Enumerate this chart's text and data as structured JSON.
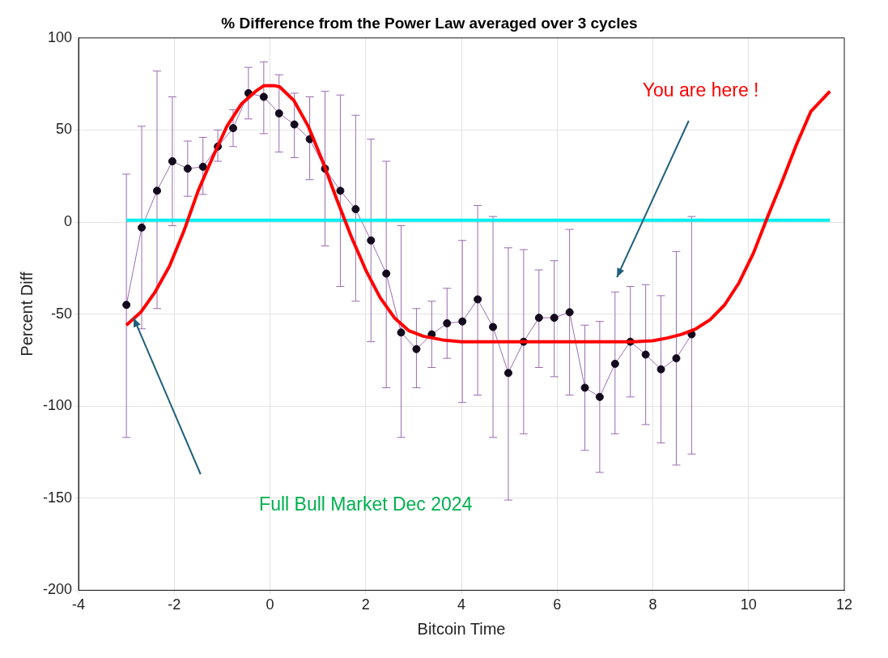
{
  "chart_data": {
    "type": "line",
    "title": "% Difference from the Power Law averaged over 3 cycles",
    "xlabel": "Bitcoin Time",
    "ylabel": "Percent Diff",
    "xlim": [
      -4,
      12
    ],
    "xticks": [
      -4,
      -2,
      0,
      2,
      4,
      6,
      8,
      10,
      12
    ],
    "ylim": [
      -200,
      100
    ],
    "yticks": [
      -200,
      -150,
      -100,
      -50,
      0,
      50,
      100
    ],
    "grid": true,
    "legend": false,
    "series": [
      {
        "type": "line",
        "color": "#9b6bb0",
        "marker": "circle",
        "x": [
          -3.0,
          -2.68,
          -2.36,
          -2.04,
          -1.72,
          -1.4,
          -1.09,
          -0.77,
          -0.45,
          -0.13,
          0.19,
          0.51,
          0.83,
          1.15,
          1.47,
          1.79,
          2.11,
          2.43,
          2.74,
          3.06,
          3.38,
          3.7,
          4.02,
          4.34,
          4.66,
          4.98,
          5.3,
          5.62,
          5.94,
          6.26,
          6.58,
          6.89,
          7.21,
          7.53,
          7.85,
          8.17,
          8.49,
          8.81
        ],
        "values": [
          -45,
          -3,
          17,
          33,
          29,
          30,
          41,
          51,
          70,
          68,
          59,
          53,
          45,
          29,
          17,
          7,
          -10,
          -28,
          -60,
          -69,
          -61,
          -55,
          -54,
          -42,
          -57,
          -82,
          -65,
          -52,
          -52,
          -49,
          -90,
          -95,
          -77,
          -65,
          -72,
          -80,
          -74,
          -61
        ],
        "errors": [
          [
            -117,
            26
          ],
          [
            -58,
            52
          ],
          [
            -47,
            82
          ],
          [
            -2,
            68
          ],
          [
            14,
            44
          ],
          [
            15,
            46
          ],
          [
            33,
            50
          ],
          [
            41,
            61
          ],
          [
            56,
            84
          ],
          [
            48,
            87
          ],
          [
            38,
            80
          ],
          [
            35,
            70
          ],
          [
            23,
            68
          ],
          [
            -13,
            71
          ],
          [
            -35,
            69
          ],
          [
            -43,
            58
          ],
          [
            -65,
            45
          ],
          [
            -90,
            33
          ],
          [
            -117,
            -2
          ],
          [
            -90,
            -47
          ],
          [
            -79,
            -43
          ],
          [
            -74,
            -36
          ],
          [
            -98,
            -10
          ],
          [
            -94,
            9
          ],
          [
            -117,
            3
          ],
          [
            -151,
            -14
          ],
          [
            -115,
            -15
          ],
          [
            -79,
            -26
          ],
          [
            -84,
            -21
          ],
          [
            -94,
            -4
          ],
          [
            -124,
            -56
          ],
          [
            -136,
            -54
          ],
          [
            -115,
            -38
          ],
          [
            -95,
            -35
          ],
          [
            -110,
            -34
          ],
          [
            -120,
            -40
          ],
          [
            -132,
            -16
          ],
          [
            -126,
            3
          ]
        ]
      },
      {
        "type": "line",
        "color": "#ff0000",
        "marker": "none",
        "x": [
          -3,
          -2.7,
          -2.4,
          -2.1,
          -1.8,
          -1.5,
          -1.2,
          -0.9,
          -0.6,
          -0.3,
          -0.13,
          0.1,
          0.2,
          0.5,
          0.8,
          1.1,
          1.4,
          1.7,
          2.0,
          2.3,
          2.6,
          2.9,
          3.2,
          3.6,
          4.0,
          5,
          6,
          7,
          7.6,
          8.0,
          8.3,
          8.6,
          8.9,
          9.2,
          9.5,
          9.8,
          10.1,
          10.4,
          10.7,
          11.0,
          11.3,
          11.7
        ],
        "values": [
          -56,
          -49,
          -38,
          -24,
          -5,
          17,
          35,
          52,
          64,
          71,
          74,
          74,
          73.5,
          66,
          52,
          33,
          12,
          -8,
          -26,
          -41,
          -52,
          -59,
          -62,
          -64,
          -65,
          -65,
          -65,
          -65,
          -65,
          -64.5,
          -63,
          -61,
          -58,
          -53,
          -45,
          -33,
          -17,
          3,
          22,
          42,
          60,
          71
        ]
      },
      {
        "type": "line",
        "color": "#00eeee",
        "marker": "none",
        "x": [
          -3,
          11.7
        ],
        "values": [
          1,
          1
        ]
      }
    ],
    "annotations": [
      "You are here !",
      "Full Bull Market Dec 2024"
    ]
  }
}
